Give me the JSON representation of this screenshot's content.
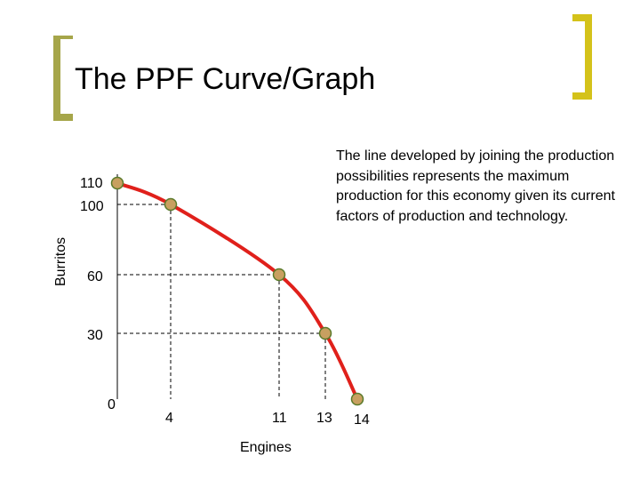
{
  "slide": {
    "title": "The PPF Curve/Graph",
    "note": "The line developed by joining the production possibilities represents the maximum production for this economy given its current factors of production and technology.",
    "accent_color": "#a6a64a"
  },
  "chart_data": {
    "type": "line",
    "title": "",
    "xlabel": "Engines",
    "ylabel": "Burritos",
    "x_ticks": [
      4,
      11,
      13,
      14
    ],
    "y_ticks": [
      110,
      100,
      60,
      30
    ],
    "origin_label": "0",
    "points": [
      {
        "x": 0,
        "y": 110
      },
      {
        "x": 4,
        "y": 100
      },
      {
        "x": 11,
        "y": 60
      },
      {
        "x": 13,
        "y": 30
      },
      {
        "x": 14,
        "y": 0
      }
    ],
    "line_color": "#e0201b",
    "point_fill": "#c8a060",
    "point_stroke": "#5a7a2a",
    "grid": false
  }
}
